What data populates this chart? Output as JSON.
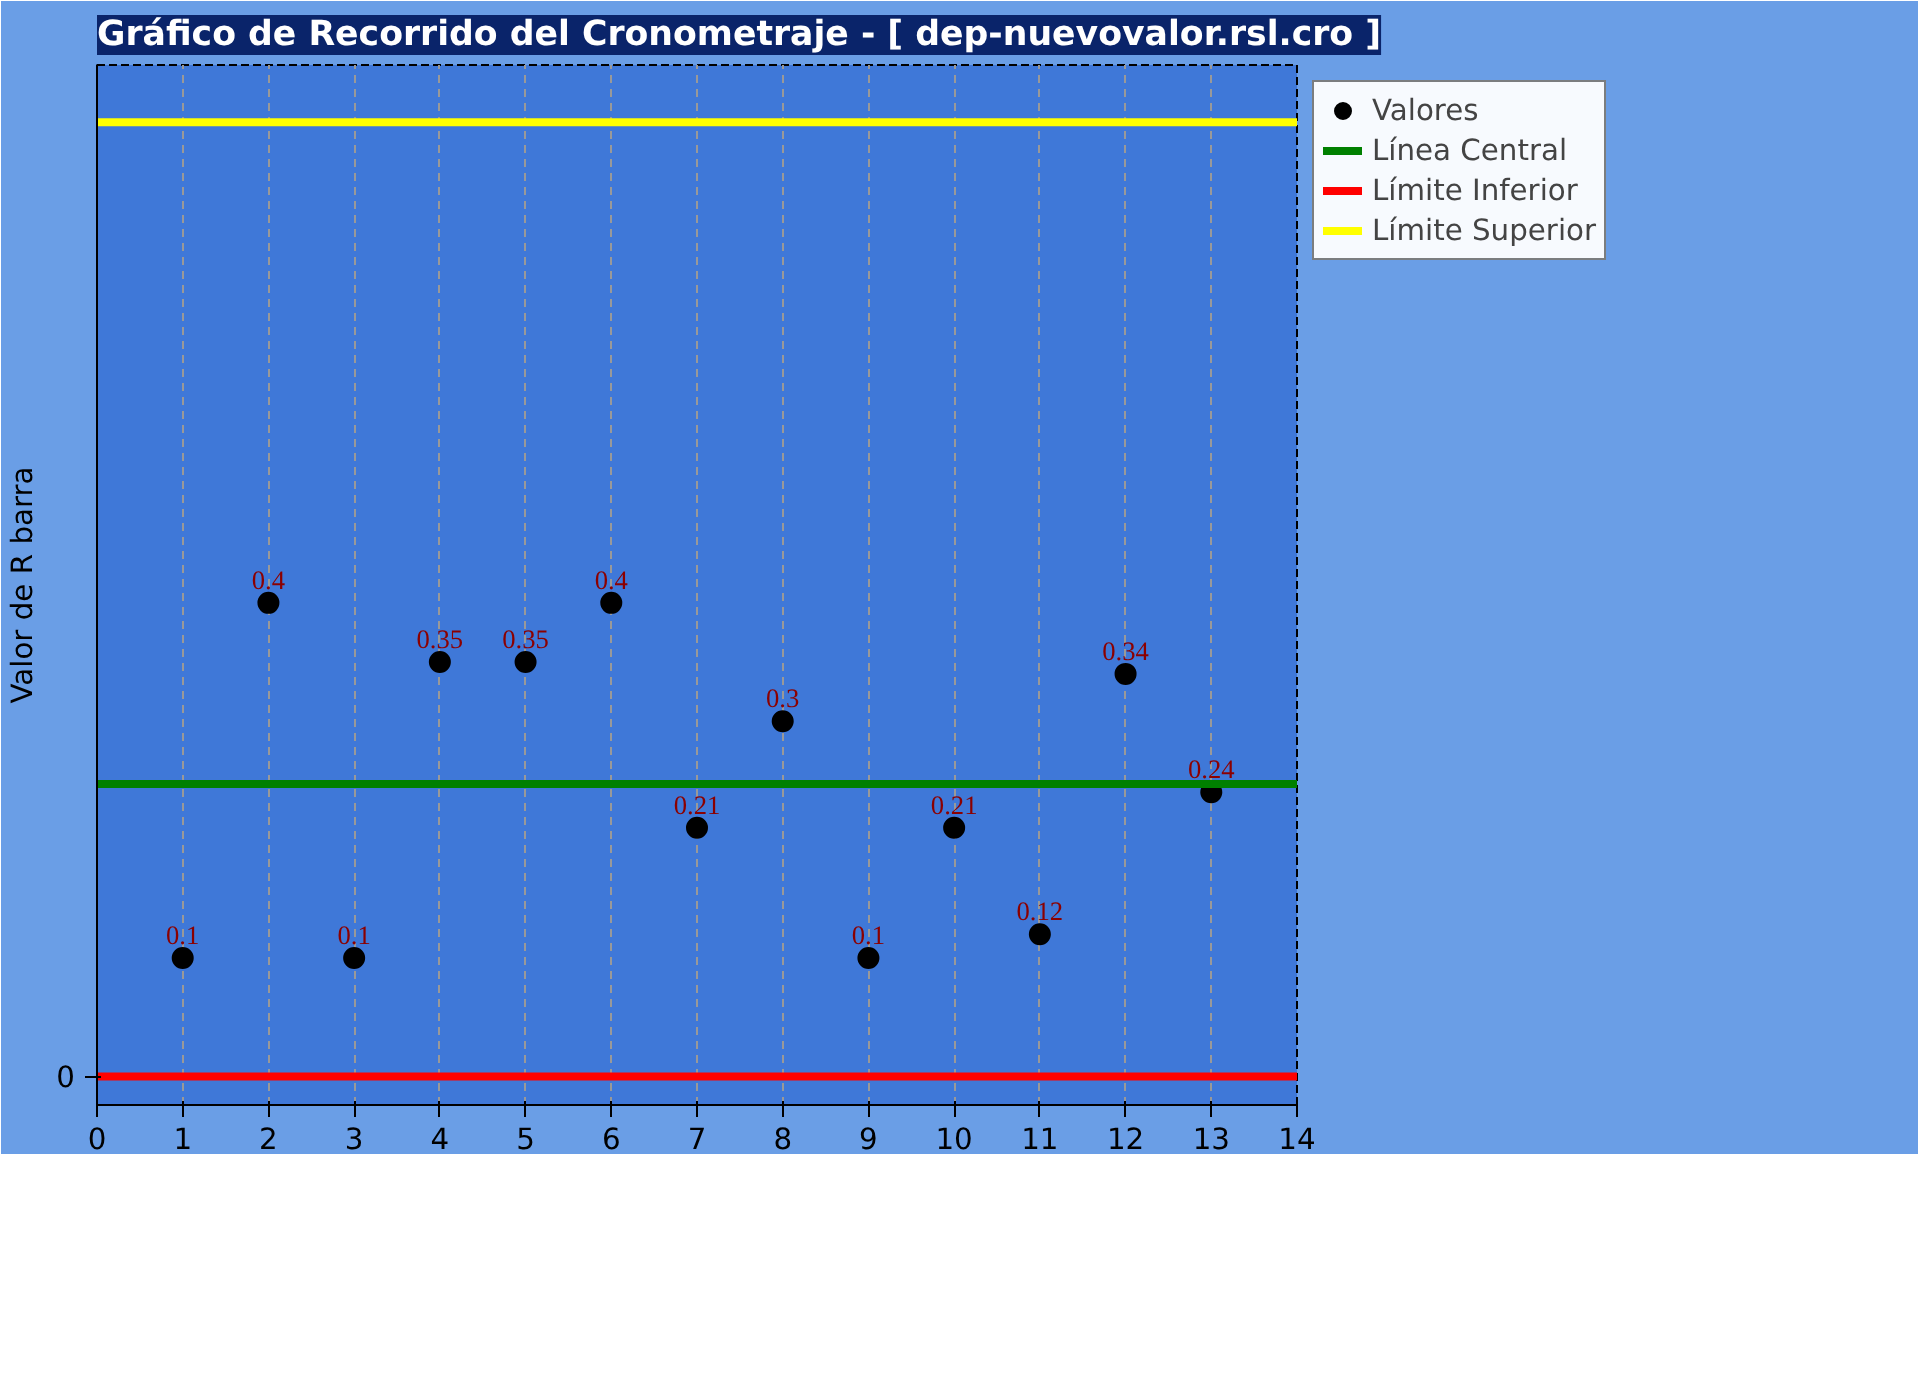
{
  "chart_data": {
    "type": "scatter",
    "title": "Gráfico de Recorrido del Cronometraje - [ dep-nuevovalor.rsl.cro ]",
    "ylabel": "Valor de R barra",
    "x": [
      1,
      2,
      3,
      4,
      5,
      6,
      7,
      8,
      9,
      10,
      11,
      12,
      13
    ],
    "series": [
      {
        "name": "Valores",
        "color": "#000000",
        "values": [
          0.1,
          0.4,
          0.1,
          0.35,
          0.35,
          0.4,
          0.21,
          0.3,
          0.1,
          0.21,
          0.12,
          0.34,
          0.24
        ]
      }
    ],
    "ref_lines": [
      {
        "axis": "y",
        "value": 0.247,
        "label": "Línea Central",
        "color": "#008000"
      },
      {
        "axis": "y",
        "value": 0,
        "label": "Límite Inferior",
        "color": "#ff0000"
      },
      {
        "axis": "y",
        "value": 0.806,
        "label": "Límite Superior",
        "color": "#ffff00"
      }
    ],
    "annotations": [
      "0"
    ],
    "xlim": [
      0,
      14
    ],
    "xticks": [
      0,
      1,
      2,
      3,
      4,
      5,
      6,
      7,
      8,
      9,
      10,
      11,
      12,
      13,
      14
    ],
    "grid": "x",
    "legend": "right",
    "marker": "circle",
    "data_labels": true
  }
}
